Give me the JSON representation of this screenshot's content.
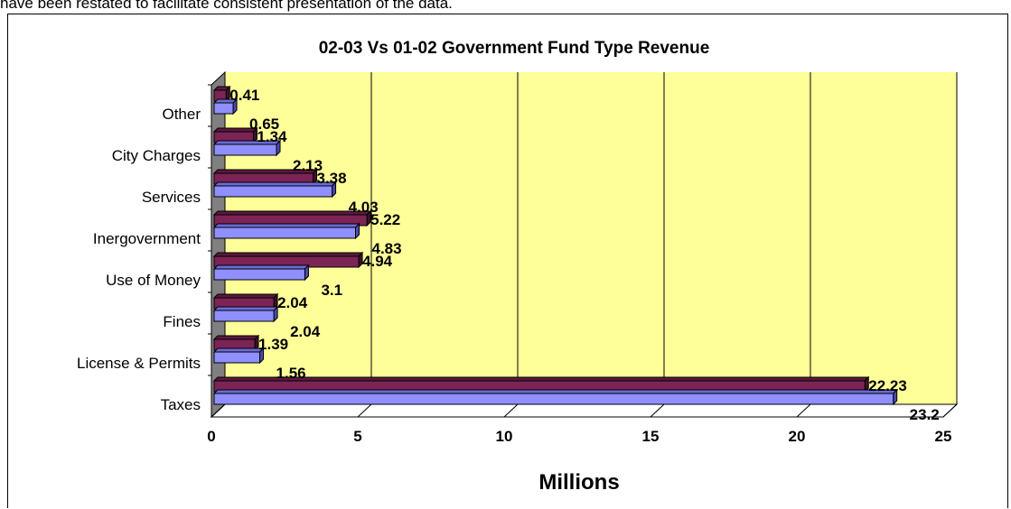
{
  "caption": "have been restated to facilitate consistent presentation of the data.",
  "chart_data": {
    "type": "bar",
    "orientation": "horizontal",
    "title": "02-03 Vs 01-02 Government Fund Type Revenue",
    "xlabel": "Millions",
    "ylabel": "",
    "xlim": [
      0,
      25
    ],
    "xticks": [
      "0",
      "5",
      "10",
      "15",
      "20",
      "25"
    ],
    "categories": [
      "Other",
      "City Charges",
      "Services",
      "Inergovernment",
      "Use of Money",
      "Fines",
      "License & Permits",
      "Taxes"
    ],
    "series": [
      {
        "values": [
          0.41,
          1.34,
          3.38,
          5.22,
          4.94,
          2.04,
          1.39,
          22.23
        ],
        "color": "#7b2455"
      },
      {
        "values": [
          0.65,
          2.13,
          4.03,
          4.83,
          3.1,
          2.04,
          1.56,
          23.2
        ],
        "color": "#8f8fff"
      }
    ],
    "grid": true,
    "plot_background": "#ffff99"
  }
}
